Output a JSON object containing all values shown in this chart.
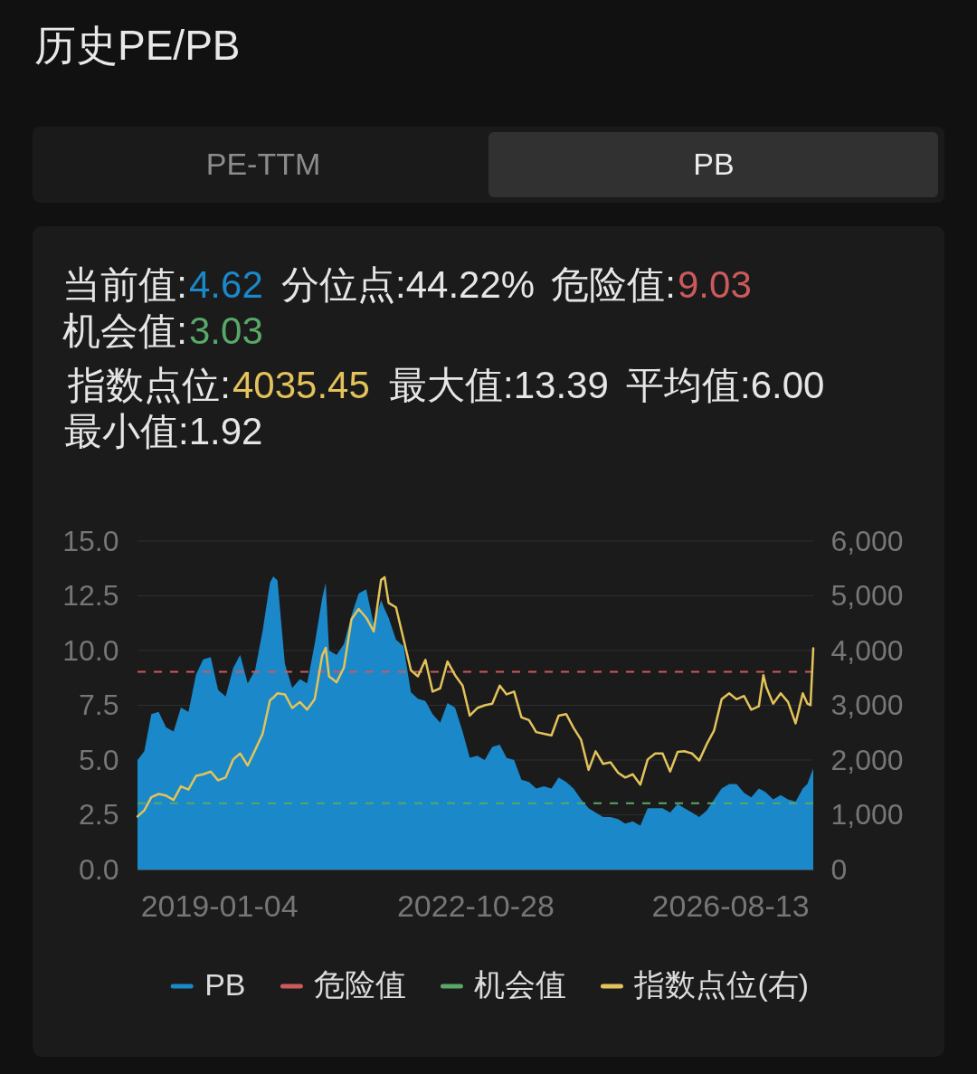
{
  "chart_data": {
    "type": "area",
    "title": "历史PE/PB",
    "annotations": [
      "PE-TTM",
      "PB",
      "当前值:4.62",
      "分位点:44.22%",
      "危险值:9.03",
      "机会值:3.03",
      "指数点位:4035.45",
      "最大值:13.39",
      "平均值:6.00",
      "最小值:1.92"
    ],
    "x": [
      "2017-10-18",
      "2017-11-24",
      "2018-01-01",
      "2018-02-10",
      "2018-03-22",
      "2018-05-02",
      "2018-06-11",
      "2018-07-22",
      "2018-09-01",
      "2018-10-10",
      "2018-11-20",
      "2018-12-30",
      "2019-02-09",
      "2019-03-22",
      "2019-04-29",
      "2019-06-09",
      "2019-07-19",
      "2019-08-29",
      "2019-10-08",
      "2019-10-26",
      "2019-11-18",
      "2019-12-28",
      "2020-02-06",
      "2020-03-19",
      "2020-04-27",
      "2020-06-07",
      "2020-07-18",
      "2020-08-06",
      "2020-08-24",
      "2020-10-04",
      "2020-11-13",
      "2020-12-24",
      "2021-02-01",
      "2021-03-14",
      "2021-04-24",
      "2021-06-03",
      "2021-06-22",
      "2021-07-14",
      "2021-08-23",
      "2021-10-03",
      "2021-11-12",
      "2021-12-20",
      "2022-01-30",
      "2022-03-10",
      "2022-04-20",
      "2022-05-30",
      "2022-07-10",
      "2022-08-20",
      "2022-09-28",
      "2022-11-08",
      "2022-12-18",
      "2023-01-28",
      "2023-03-10",
      "2023-04-16",
      "2023-05-27",
      "2023-07-06",
      "2023-08-16",
      "2023-09-24",
      "2023-11-05",
      "2023-12-16",
      "2024-01-24",
      "2024-03-05",
      "2024-04-14",
      "2024-05-25",
      "2024-07-05",
      "2024-08-12",
      "2024-09-22",
      "2024-11-01",
      "2024-12-12",
      "2025-01-20",
      "2025-03-02",
      "2025-04-12",
      "2025-05-22",
      "2025-07-02",
      "2025-08-11",
      "2025-09-21",
      "2025-11-01",
      "2025-12-08",
      "2026-01-18",
      "2026-02-26",
      "2026-04-08",
      "2026-05-18",
      "2026-06-28",
      "2026-08-08",
      "2026-09-17",
      "2026-10-28",
      "2026-12-06",
      "2027-01-16",
      "2027-02-10",
      "2027-02-26",
      "2027-04-04",
      "2027-05-15",
      "2027-06-24",
      "2027-08-04",
      "2027-09-12",
      "2027-10-07",
      "2027-10-24",
      "2027-11-08"
    ],
    "series": [
      {
        "name": "PB",
        "color": "#1a88c9",
        "values": [
          5.0,
          5.4,
          7.1,
          7.2,
          6.5,
          6.3,
          7.4,
          7.2,
          8.9,
          9.6,
          9.7,
          8.2,
          7.9,
          9.2,
          9.8,
          8.5,
          9.1,
          10.9,
          13.1,
          13.39,
          13.2,
          9.4,
          8.3,
          8.7,
          8.5,
          10.3,
          12.4,
          13.1,
          10.0,
          9.8,
          10.3,
          11.6,
          12.6,
          12.8,
          11.2,
          12.3,
          11.9,
          11.5,
          10.5,
          10.2,
          8.1,
          7.8,
          7.7,
          7.1,
          6.7,
          7.6,
          7.4,
          6.3,
          5.1,
          5.2,
          5.0,
          5.6,
          5.7,
          5.1,
          5.0,
          4.1,
          4.0,
          3.7,
          3.8,
          3.7,
          4.2,
          4.0,
          3.7,
          3.2,
          2.8,
          2.6,
          2.4,
          2.4,
          2.3,
          2.1,
          2.2,
          2.0,
          2.8,
          2.8,
          2.8,
          2.6,
          3.0,
          2.8,
          2.6,
          2.4,
          2.7,
          3.2,
          3.7,
          3.9,
          3.9,
          3.5,
          3.3,
          3.7,
          3.6,
          3.5,
          3.2,
          3.4,
          3.2,
          3.1,
          3.7,
          3.9,
          4.3,
          4.62
        ]
      },
      {
        "name": "指数点位(右)",
        "type": "line",
        "axis": "y2",
        "color": "#e3c35a",
        "values": [
          970,
          1080,
          1320,
          1380,
          1350,
          1270,
          1520,
          1460,
          1710,
          1740,
          1790,
          1630,
          1680,
          2010,
          2120,
          1900,
          2180,
          2480,
          3090,
          3140,
          3220,
          3200,
          2950,
          3060,
          2920,
          3110,
          3910,
          4050,
          3530,
          3420,
          3690,
          4570,
          4760,
          4600,
          4350,
          5290,
          5340,
          4870,
          4790,
          4210,
          3640,
          3530,
          3830,
          3250,
          3310,
          3800,
          3550,
          3360,
          2810,
          2950,
          3000,
          3030,
          3360,
          3200,
          3250,
          2780,
          2730,
          2510,
          2480,
          2450,
          2810,
          2840,
          2590,
          2370,
          1820,
          2160,
          1930,
          1960,
          1770,
          1680,
          1740,
          1550,
          2010,
          2120,
          2120,
          1790,
          2150,
          2160,
          2120,
          1990,
          2290,
          2540,
          3110,
          3220,
          3110,
          3170,
          2920,
          2980,
          3550,
          3330,
          3030,
          3220,
          3060,
          2670,
          3220,
          3030,
          3000,
          4040
        ]
      }
    ],
    "xlim": [
      "2017-10-18",
      "2027-11-08"
    ],
    "xticks": [
      "2019-01-04",
      "2022-10-28",
      "2026-08-13"
    ],
    "ylim": [
      0,
      15
    ],
    "yticks": [
      {
        "value": 0,
        "label": "0.0"
      },
      2.5,
      {
        "value": 5,
        "label": "5.0"
      },
      7.5,
      {
        "value": 10,
        "label": "10.0"
      },
      12.5,
      {
        "value": 15,
        "label": "15.0"
      }
    ],
    "y2lim": [
      0,
      6000
    ],
    "y2ticks": [
      0,
      {
        "value": 1000,
        "label": "1,000"
      },
      {
        "value": 2000,
        "label": "2,000"
      },
      {
        "value": 3000,
        "label": "3,000"
      },
      {
        "value": 4000,
        "label": "4,000"
      },
      {
        "value": 5000,
        "label": "5,000"
      },
      {
        "value": 6000,
        "label": "6,000"
      }
    ],
    "ref_lines": [
      {
        "axis": "y",
        "value": 9.03,
        "label": "危险值",
        "color": "#cc5a5c",
        "line_style": "dashed"
      },
      {
        "axis": "y",
        "value": 3.03,
        "label": "机会值",
        "color": "#58a868",
        "line_style": "dashed"
      }
    ],
    "grid": "y",
    "legend": "bottom"
  }
}
